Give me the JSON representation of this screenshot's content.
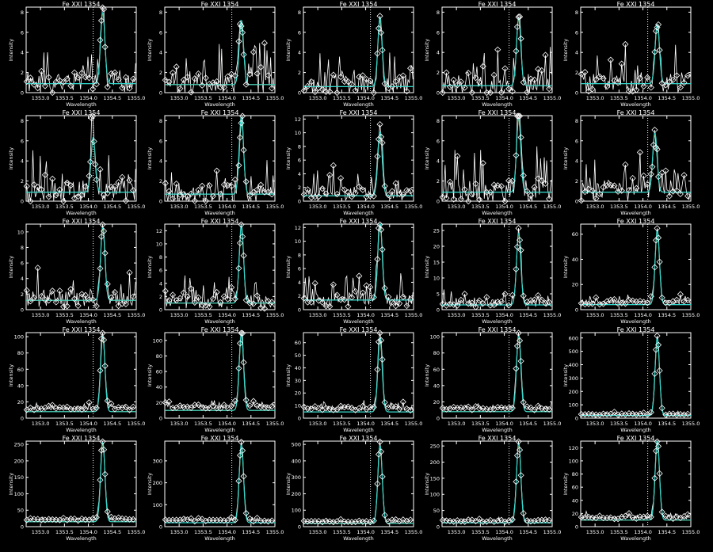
{
  "figure": {
    "background": "#000000"
  },
  "styles": {
    "axis_color": "#ffffff",
    "data_color": "#ffffff",
    "fit_color": "#2fd8d0",
    "alt_fit_color": "#e8a020",
    "symbol": "diamond",
    "reference_line": "dotted"
  },
  "chart_data": [
    {
      "type": "line",
      "title": "Fe XXI 1354",
      "xlabel": "Wavelength",
      "ylabel": "Intensity",
      "xlim": [
        1352.7,
        1355.0
      ],
      "xticks": [
        "1353.0",
        "1353.5",
        "1354.0",
        "1354.5",
        "1355.0"
      ],
      "ylim": [
        0,
        8.5
      ],
      "yticks": [
        0,
        2,
        4,
        6,
        8
      ],
      "ref_x": 1354.1,
      "peak_x": 1354.3,
      "peak": 7.2,
      "baseline": 1.0,
      "noise": 3.8,
      "fit_baseline": 0.9,
      "seed": 1
    },
    {
      "type": "line",
      "title": "Fe XXI 1354",
      "xlabel": "Wavelength",
      "ylabel": "Intensity",
      "xlim": [
        1352.7,
        1355.0
      ],
      "xticks": [
        "1353.0",
        "1353.5",
        "1354.0",
        "1354.5",
        "1355.0"
      ],
      "ylim": [
        0,
        8.5
      ],
      "yticks": [
        0,
        2,
        4,
        6,
        8
      ],
      "ref_x": 1354.1,
      "peak_x": 1354.3,
      "peak": 6.5,
      "baseline": 0.9,
      "noise": 3.6,
      "fit_baseline": 0.8,
      "seed": 2
    },
    {
      "type": "line",
      "title": "Fe XXI 1354",
      "xlabel": "Wavelength",
      "ylabel": "Intensity",
      "xlim": [
        1352.7,
        1355.0
      ],
      "xticks": [
        "1353.0",
        "1353.5",
        "1354.0",
        "1354.5",
        "1355.0"
      ],
      "ylim": [
        0,
        8.5
      ],
      "yticks": [
        0,
        2,
        4,
        6,
        8
      ],
      "ref_x": 1354.1,
      "peak_x": 1354.3,
      "peak": 7.0,
      "baseline": 0.8,
      "noise": 3.6,
      "fit_baseline": 0.6,
      "seed": 3
    },
    {
      "type": "line",
      "title": "Fe XXI 1354",
      "xlabel": "Wavelength",
      "ylabel": "Intensity",
      "xlim": [
        1352.7,
        1355.0
      ],
      "xticks": [
        "1353.0",
        "1353.5",
        "1354.0",
        "1354.5",
        "1355.0"
      ],
      "ylim": [
        0,
        8.5
      ],
      "yticks": [
        0,
        2,
        4,
        6,
        8
      ],
      "ref_x": 1354.1,
      "peak_x": 1354.3,
      "peak": 6.8,
      "baseline": 0.8,
      "noise": 3.5,
      "fit_baseline": 0.7,
      "seed": 4
    },
    {
      "type": "line",
      "title": "Fe XXI 1354",
      "xlabel": "Wavelength",
      "ylabel": "Intensity",
      "xlim": [
        1352.7,
        1355.0
      ],
      "xticks": [
        "1353.0",
        "1353.5",
        "1354.0",
        "1354.5",
        "1355.0"
      ],
      "ylim": [
        0,
        8.5
      ],
      "yticks": [
        0,
        2,
        4,
        6,
        8
      ],
      "ref_x": 1354.1,
      "peak_x": 1354.3,
      "peak": 6.0,
      "baseline": 1.0,
      "noise": 3.6,
      "fit_baseline": 0.9,
      "seed": 5
    },
    {
      "type": "line",
      "title": "Fe XXI 1354",
      "xlabel": "Wavelength",
      "ylabel": "Intensity",
      "xlim": [
        1352.7,
        1355.0
      ],
      "xticks": [
        "1353.0",
        "1353.5",
        "1354.0",
        "1354.5",
        "1355.0"
      ],
      "ylim": [
        0,
        8.5
      ],
      "yticks": [
        0,
        2,
        4,
        6,
        8
      ],
      "ref_x": 1354.1,
      "peak_x": 1354.1,
      "peak": 5.5,
      "baseline": 1.0,
      "noise": 3.6,
      "fit_baseline": 0.9,
      "seed": 6
    },
    {
      "type": "line",
      "title": "Fe XXI 1354",
      "xlabel": "Wavelength",
      "ylabel": "Intensity",
      "xlim": [
        1352.7,
        1355.0
      ],
      "xticks": [
        "1353.0",
        "1353.5",
        "1354.0",
        "1354.5",
        "1355.0"
      ],
      "ylim": [
        0,
        8.5
      ],
      "yticks": [
        0,
        2,
        4,
        6,
        8
      ],
      "ref_x": 1354.1,
      "peak_x": 1354.3,
      "peak": 7.8,
      "baseline": 0.8,
      "noise": 3.5,
      "fit_baseline": 0.7,
      "seed": 7
    },
    {
      "type": "line",
      "title": "Fe XXI 1354",
      "xlabel": "Wavelength",
      "ylabel": "Intensity",
      "xlim": [
        1352.7,
        1355.0
      ],
      "xticks": [
        "1353.0",
        "1353.5",
        "1354.0",
        "1354.5",
        "1355.0"
      ],
      "ylim": [
        0,
        12.5
      ],
      "yticks": [
        0,
        2,
        4,
        6,
        8,
        10,
        12
      ],
      "ref_x": 1354.1,
      "peak_x": 1354.3,
      "peak": 9.5,
      "baseline": 1.2,
      "noise": 3.5,
      "fit_baseline": 0.8,
      "seed": 8
    },
    {
      "type": "line",
      "title": "Fe XXI 1354",
      "xlabel": "Wavelength",
      "ylabel": "Intensity",
      "xlim": [
        1352.7,
        1355.0
      ],
      "xticks": [
        "1353.0",
        "1353.5",
        "1354.0",
        "1354.5",
        "1355.0"
      ],
      "ylim": [
        0,
        8.5
      ],
      "yticks": [
        0,
        2,
        4,
        6,
        8
      ],
      "ref_x": 1354.1,
      "peak_x": 1354.3,
      "peak": 7.5,
      "baseline": 1.0,
      "noise": 3.8,
      "fit_baseline": 0.9,
      "seed": 9
    },
    {
      "type": "line",
      "title": "Fe XXI 1354",
      "xlabel": "Wavelength",
      "ylabel": "Intensity",
      "xlim": [
        1352.7,
        1355.0
      ],
      "xticks": [
        "1353.0",
        "1353.5",
        "1354.0",
        "1354.5",
        "1355.0"
      ],
      "ylim": [
        0,
        8.5
      ],
      "yticks": [
        0,
        2,
        4,
        6,
        8
      ],
      "ref_x": 1354.1,
      "peak_x": 1354.25,
      "peak": 6.0,
      "baseline": 1.0,
      "noise": 3.6,
      "fit_baseline": 0.9,
      "seed": 10
    },
    {
      "type": "line",
      "title": "Fe XXI 1354",
      "xlabel": "Wavelength",
      "ylabel": "Intensity",
      "xlim": [
        1352.7,
        1355.0
      ],
      "xticks": [
        "1353.0",
        "1353.5",
        "1354.0",
        "1354.5",
        "1355.0"
      ],
      "ylim": [
        0,
        11
      ],
      "yticks": [
        0,
        2,
        4,
        6,
        8,
        10
      ],
      "ref_x": 1354.1,
      "peak_x": 1354.3,
      "peak": 9.5,
      "baseline": 1.5,
      "noise": 4.0,
      "fit_baseline": 1.2,
      "seed": 11
    },
    {
      "type": "line",
      "title": "Fe XXI 1354",
      "xlabel": "Wavelength",
      "ylabel": "Intensity",
      "xlim": [
        1352.7,
        1355.0
      ],
      "xticks": [
        "1353.0",
        "1353.5",
        "1354.0",
        "1354.5",
        "1355.0"
      ],
      "ylim": [
        0,
        13
      ],
      "yticks": [
        0,
        2,
        4,
        6,
        8,
        10,
        12
      ],
      "ref_x": 1354.1,
      "peak_x": 1354.3,
      "peak": 12.0,
      "baseline": 1.2,
      "noise": 3.5,
      "fit_baseline": 1.0,
      "seed": 12
    },
    {
      "type": "line",
      "title": "Fe XXI 1354",
      "xlabel": "Wavelength",
      "ylabel": "Intensity",
      "xlim": [
        1352.7,
        1355.0
      ],
      "xticks": [
        "1353.0",
        "1353.5",
        "1354.0",
        "1354.5",
        "1355.0"
      ],
      "ylim": [
        0,
        12.5
      ],
      "yticks": [
        0,
        2,
        4,
        6,
        8,
        10,
        12
      ],
      "ref_x": 1354.1,
      "peak_x": 1354.3,
      "peak": 11.5,
      "baseline": 1.5,
      "noise": 3.5,
      "fit_baseline": 1.4,
      "seed": 13
    },
    {
      "type": "line",
      "title": "Fe XXI 1354",
      "xlabel": "Wavelength",
      "ylabel": "Intensity",
      "xlim": [
        1352.7,
        1355.0
      ],
      "xticks": [
        "1353.0",
        "1353.5",
        "1354.0",
        "1354.5",
        "1355.0"
      ],
      "ylim": [
        0,
        27
      ],
      "yticks": [
        0,
        5,
        10,
        15,
        20,
        25
      ],
      "ref_x": 1354.1,
      "peak_x": 1354.3,
      "peak": 23,
      "baseline": 2.0,
      "noise": 4.0,
      "fit_baseline": 1.5,
      "seed": 14
    },
    {
      "type": "line",
      "title": "Fe XXI 1354",
      "xlabel": "Wavelength",
      "ylabel": "Intensity",
      "xlim": [
        1352.7,
        1355.0
      ],
      "xticks": [
        "1353.0",
        "1353.5",
        "1354.0",
        "1354.5",
        "1355.0"
      ],
      "ylim": [
        0,
        68
      ],
      "yticks": [
        0,
        20,
        40,
        60
      ],
      "ref_x": 1354.1,
      "peak_x": 1354.3,
      "peak": 60,
      "baseline": 6,
      "noise": 6,
      "fit_baseline": 4,
      "seed": 15
    },
    {
      "type": "line",
      "title": "Fe XXI 1354",
      "xlabel": "Wavelength",
      "ylabel": "Intensity",
      "xlim": [
        1352.7,
        1355.0
      ],
      "xticks": [
        "1353.0",
        "1353.5",
        "1354.0",
        "1354.5",
        "1355.0"
      ],
      "ylim": [
        0,
        105
      ],
      "yticks": [
        0,
        20,
        40,
        60,
        80,
        100
      ],
      "ref_x": 1354.1,
      "peak_x": 1354.3,
      "peak": 95,
      "baseline": 12,
      "noise": 7,
      "fit_baseline": 8,
      "seed": 16
    },
    {
      "type": "line",
      "title": "Fe XXI 1354",
      "xlabel": "Wavelength",
      "ylabel": "Intensity",
      "xlim": [
        1352.7,
        1355.0
      ],
      "xticks": [
        "1353.0",
        "1353.5",
        "1354.0",
        "1354.5",
        "1355.0"
      ],
      "ylim": [
        0,
        110
      ],
      "yticks": [
        0,
        20,
        40,
        60,
        80,
        100
      ],
      "ref_x": 1354.1,
      "peak_x": 1354.3,
      "peak": 100,
      "baseline": 15,
      "noise": 8,
      "fit_baseline": 10,
      "seed": 17
    },
    {
      "type": "line",
      "title": "Fe XXI 1354",
      "xlabel": "Wavelength",
      "ylabel": "Intensity",
      "xlim": [
        1352.7,
        1355.0
      ],
      "xticks": [
        "1353.0",
        "1353.5",
        "1354.0",
        "1354.5",
        "1355.0"
      ],
      "ylim": [
        0,
        68
      ],
      "yticks": [
        0,
        10,
        20,
        30,
        40,
        50,
        60
      ],
      "ref_x": 1354.1,
      "peak_x": 1354.3,
      "peak": 60,
      "baseline": 8,
      "noise": 6,
      "fit_baseline": 5,
      "seed": 18
    },
    {
      "type": "line",
      "title": "Fe XXI 1354",
      "xlabel": "Wavelength",
      "ylabel": "Intensity",
      "xlim": [
        1352.7,
        1355.0
      ],
      "xticks": [
        "1353.0",
        "1353.5",
        "1354.0",
        "1354.5",
        "1355.0"
      ],
      "ylim": [
        0,
        105
      ],
      "yticks": [
        0,
        20,
        40,
        60,
        80,
        100
      ],
      "ref_x": 1354.1,
      "peak_x": 1354.3,
      "peak": 95,
      "baseline": 12,
      "noise": 7,
      "fit_baseline": 8,
      "seed": 19
    },
    {
      "type": "line",
      "title": "Fe XXI 1354",
      "xlabel": "Wavelength",
      "ylabel": "Intensity",
      "xlim": [
        1352.7,
        1355.0
      ],
      "xticks": [
        "1353.0",
        "1353.5",
        "1354.0",
        "1354.5",
        "1355.0"
      ],
      "ylim": [
        0,
        640
      ],
      "yticks": [
        0,
        100,
        200,
        300,
        400,
        500,
        600
      ],
      "ref_x": 1354.1,
      "peak_x": 1354.3,
      "peak": 590,
      "baseline": 30,
      "noise": 20,
      "fit_baseline": 20,
      "seed": 20
    },
    {
      "type": "line",
      "title": "Fe XXI 1354",
      "xlabel": "Wavelength",
      "ylabel": "Intensity",
      "xlim": [
        1352.7,
        1355.0
      ],
      "xticks": [
        "1353.0",
        "1353.5",
        "1354.0",
        "1354.5",
        "1355.0"
      ],
      "ylim": [
        0,
        260
      ],
      "yticks": [
        0,
        50,
        100,
        150,
        200,
        250
      ],
      "ref_x": 1354.1,
      "peak_x": 1354.3,
      "peak": 245,
      "baseline": 22,
      "noise": 12,
      "fit_baseline": 15,
      "seed": 21
    },
    {
      "type": "line",
      "title": "Fe XXI 1354",
      "xlabel": "Wavelength",
      "ylabel": "Intensity",
      "xlim": [
        1352.7,
        1355.0
      ],
      "xticks": [
        "1353.0",
        "1353.5",
        "1354.0",
        "1354.5",
        "1355.0"
      ],
      "ylim": [
        0,
        390
      ],
      "yticks": [
        0,
        100,
        200,
        300
      ],
      "ref_x": 1354.1,
      "peak_x": 1354.3,
      "peak": 360,
      "baseline": 28,
      "noise": 15,
      "fit_baseline": 18,
      "seed": 22
    },
    {
      "type": "line",
      "title": "Fe XXI 1354",
      "xlabel": "Wavelength",
      "ylabel": "Intensity",
      "xlim": [
        1352.7,
        1355.0
      ],
      "xticks": [
        "1353.0",
        "1353.5",
        "1354.0",
        "1354.5",
        "1355.0"
      ],
      "ylim": [
        0,
        520
      ],
      "yticks": [
        0,
        100,
        200,
        300,
        400,
        500
      ],
      "ref_x": 1354.1,
      "peak_x": 1354.3,
      "peak": 480,
      "baseline": 30,
      "noise": 18,
      "fit_baseline": 20,
      "seed": 23
    },
    {
      "type": "line",
      "title": "Fe XXI 1354",
      "xlabel": "Wavelength",
      "ylabel": "Intensity",
      "xlim": [
        1352.7,
        1355.0
      ],
      "xticks": [
        "1353.0",
        "1353.5",
        "1354.0",
        "1354.5",
        "1355.0"
      ],
      "ylim": [
        0,
        265
      ],
      "yticks": [
        0,
        50,
        100,
        150,
        200,
        250
      ],
      "ref_x": 1354.1,
      "peak_x": 1354.3,
      "peak": 250,
      "baseline": 18,
      "noise": 12,
      "fit_baseline": 12,
      "seed": 24
    },
    {
      "type": "line",
      "title": "Fe XXI 1354",
      "xlabel": "Wavelength",
      "ylabel": "Intensity",
      "xlim": [
        1352.7,
        1355.0
      ],
      "xticks": [
        "1353.0",
        "1353.5",
        "1354.0",
        "1354.5",
        "1355.0"
      ],
      "ylim": [
        0,
        130
      ],
      "yticks": [
        0,
        20,
        40,
        60,
        80,
        100,
        120
      ],
      "ref_x": 1354.1,
      "peak_x": 1354.3,
      "peak": 122,
      "baseline": 14,
      "noise": 8,
      "fit_baseline": 10,
      "seed": 25
    }
  ]
}
